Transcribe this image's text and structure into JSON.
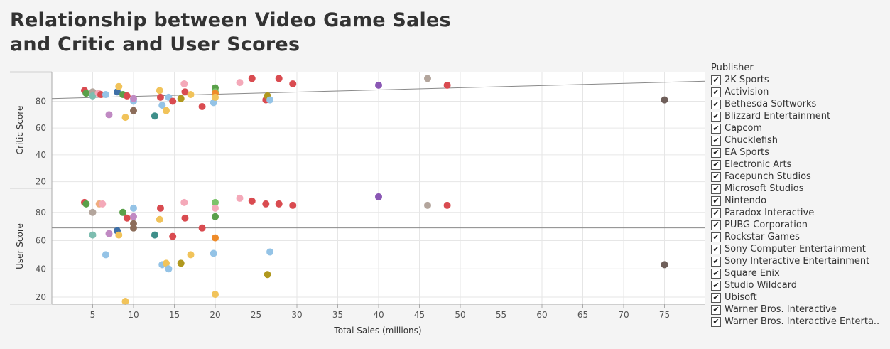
{
  "title_line1": "Relationship between Video Game Sales",
  "title_line2": "and Critic and User Scores",
  "legend": {
    "title": "Publisher",
    "items": [
      "2K Sports",
      "Activision",
      "Bethesda Softworks",
      "Blizzard Entertainment",
      "Capcom",
      "Chucklefish",
      "EA Sports",
      "Electronic Arts",
      "Facepunch Studios",
      "Microsoft Studios",
      "Nintendo",
      "Paradox Interactive",
      "PUBG Corporation",
      "Rockstar Games",
      "Sony Computer Entertainment",
      "Sony Interactive Entertainment",
      "Square Enix",
      "Studio Wildcard",
      "Ubisoft",
      "Warner Bros. Interactive",
      "Warner Bros. Interactive Enterta.."
    ],
    "check_glyph": "✔"
  },
  "colors": {
    "red": "#d94b50",
    "pink": "#f4a9b9",
    "green": "#5aa04a",
    "lightgreen": "#7cc36a",
    "teal": "#3e8f8a",
    "lightteal": "#7dbdb0",
    "blue": "#3e6fa6",
    "lightblue": "#94c3e6",
    "yellow": "#f1c35a",
    "orange": "#ee8b2a",
    "olive": "#b0981e",
    "brown": "#8c6d5a",
    "darkgray": "#6f5f5a",
    "gray": "#b3a59c",
    "purple": "#8a57b4",
    "lilac": "#c08ac3",
    "peach": "#f0ac7e"
  },
  "chart_data": [
    {
      "type": "scatter",
      "xlabel": "Total Sales (millions)",
      "ylabel": "Critic Score",
      "xlim": [
        0,
        80
      ],
      "ylim": [
        15,
        102
      ],
      "x_ticks": [
        "5",
        "10",
        "15",
        "20",
        "25",
        "30",
        "35",
        "40",
        "45",
        "50",
        "55",
        "60",
        "65",
        "70",
        "75"
      ],
      "y_ticks": [
        "20",
        "40",
        "60",
        "80"
      ],
      "grid": true,
      "trend_line": [
        [
          0,
          82
        ],
        [
          80,
          95
        ]
      ],
      "points": [
        {
          "x": 4,
          "y": 88,
          "c": "red"
        },
        {
          "x": 4.2,
          "y": 86,
          "c": "green"
        },
        {
          "x": 5,
          "y": 87,
          "c": "gray"
        },
        {
          "x": 5,
          "y": 84,
          "c": "lightteal"
        },
        {
          "x": 5.7,
          "y": 86,
          "c": "pink"
        },
        {
          "x": 6,
          "y": 85,
          "c": "red"
        },
        {
          "x": 6.6,
          "y": 85,
          "c": "lightblue"
        },
        {
          "x": 7,
          "y": 70,
          "c": "lilac"
        },
        {
          "x": 8,
          "y": 87,
          "c": "blue"
        },
        {
          "x": 8.2,
          "y": 91,
          "c": "yellow"
        },
        {
          "x": 8.7,
          "y": 85,
          "c": "green"
        },
        {
          "x": 9,
          "y": 68,
          "c": "yellow"
        },
        {
          "x": 9.2,
          "y": 84,
          "c": "red"
        },
        {
          "x": 10,
          "y": 80,
          "c": "lightblue"
        },
        {
          "x": 10,
          "y": 82,
          "c": "lilac"
        },
        {
          "x": 10,
          "y": 73,
          "c": "brown"
        },
        {
          "x": 12.6,
          "y": 69,
          "c": "teal"
        },
        {
          "x": 13.2,
          "y": 88,
          "c": "yellow"
        },
        {
          "x": 13.3,
          "y": 83,
          "c": "red"
        },
        {
          "x": 13.5,
          "y": 77,
          "c": "lightblue"
        },
        {
          "x": 14,
          "y": 73,
          "c": "yellow"
        },
        {
          "x": 14.3,
          "y": 83,
          "c": "lightblue"
        },
        {
          "x": 14.8,
          "y": 80,
          "c": "red"
        },
        {
          "x": 15.8,
          "y": 82,
          "c": "olive"
        },
        {
          "x": 16.2,
          "y": 93,
          "c": "pink"
        },
        {
          "x": 16.3,
          "y": 87,
          "c": "red"
        },
        {
          "x": 17,
          "y": 85,
          "c": "yellow"
        },
        {
          "x": 18.4,
          "y": 76,
          "c": "red"
        },
        {
          "x": 19.8,
          "y": 79,
          "c": "lightblue"
        },
        {
          "x": 20,
          "y": 90,
          "c": "green"
        },
        {
          "x": 20,
          "y": 87,
          "c": "lightgreen"
        },
        {
          "x": 20,
          "y": 86,
          "c": "orange"
        },
        {
          "x": 20,
          "y": 83,
          "c": "yellow"
        },
        {
          "x": 23,
          "y": 94,
          "c": "pink"
        },
        {
          "x": 24.5,
          "y": 97,
          "c": "red"
        },
        {
          "x": 26.2,
          "y": 81,
          "c": "red"
        },
        {
          "x": 26.4,
          "y": 84,
          "c": "olive"
        },
        {
          "x": 26.7,
          "y": 81,
          "c": "lightblue"
        },
        {
          "x": 27.8,
          "y": 97,
          "c": "red"
        },
        {
          "x": 29.5,
          "y": 93,
          "c": "red"
        },
        {
          "x": 40,
          "y": 92,
          "c": "purple"
        },
        {
          "x": 46,
          "y": 97,
          "c": "gray"
        },
        {
          "x": 48.4,
          "y": 92,
          "c": "red"
        },
        {
          "x": 75,
          "y": 81,
          "c": "darkgray"
        }
      ]
    },
    {
      "type": "scatter",
      "xlabel": "Total Sales (millions)",
      "ylabel": "User Score",
      "xlim": [
        0,
        80
      ],
      "ylim": [
        15,
        97
      ],
      "x_ticks": [
        "5",
        "10",
        "15",
        "20",
        "25",
        "30",
        "35",
        "40",
        "45",
        "50",
        "55",
        "60",
        "65",
        "70",
        "75"
      ],
      "y_ticks": [
        "20",
        "40",
        "60",
        "80"
      ],
      "grid": true,
      "trend_line": [
        [
          0,
          69
        ],
        [
          80,
          69
        ]
      ],
      "points": [
        {
          "x": 4,
          "y": 87,
          "c": "red"
        },
        {
          "x": 4.2,
          "y": 86,
          "c": "green"
        },
        {
          "x": 5,
          "y": 80,
          "c": "gray"
        },
        {
          "x": 5,
          "y": 64,
          "c": "lightteal"
        },
        {
          "x": 5.8,
          "y": 86,
          "c": "peach"
        },
        {
          "x": 6.2,
          "y": 86,
          "c": "pink"
        },
        {
          "x": 6.6,
          "y": 50,
          "c": "lightblue"
        },
        {
          "x": 7,
          "y": 65,
          "c": "lilac"
        },
        {
          "x": 8,
          "y": 67,
          "c": "blue"
        },
        {
          "x": 8.2,
          "y": 64,
          "c": "yellow"
        },
        {
          "x": 8.7,
          "y": 80,
          "c": "green"
        },
        {
          "x": 9,
          "y": 17,
          "c": "yellow"
        },
        {
          "x": 9.2,
          "y": 76,
          "c": "red"
        },
        {
          "x": 10,
          "y": 83,
          "c": "lightblue"
        },
        {
          "x": 10,
          "y": 77,
          "c": "lilac"
        },
        {
          "x": 10,
          "y": 72,
          "c": "brown"
        },
        {
          "x": 10,
          "y": 69,
          "c": "brown"
        },
        {
          "x": 12.6,
          "y": 64,
          "c": "teal"
        },
        {
          "x": 13.2,
          "y": 75,
          "c": "yellow"
        },
        {
          "x": 13.3,
          "y": 83,
          "c": "red"
        },
        {
          "x": 13.5,
          "y": 43,
          "c": "lightblue"
        },
        {
          "x": 14,
          "y": 44,
          "c": "yellow"
        },
        {
          "x": 14.3,
          "y": 40,
          "c": "lightblue"
        },
        {
          "x": 14.8,
          "y": 63,
          "c": "red"
        },
        {
          "x": 15.8,
          "y": 44,
          "c": "olive"
        },
        {
          "x": 16.2,
          "y": 87,
          "c": "pink"
        },
        {
          "x": 16.3,
          "y": 76,
          "c": "red"
        },
        {
          "x": 17,
          "y": 50,
          "c": "yellow"
        },
        {
          "x": 18.4,
          "y": 69,
          "c": "red"
        },
        {
          "x": 19.8,
          "y": 51,
          "c": "lightblue"
        },
        {
          "x": 20,
          "y": 87,
          "c": "lightgreen"
        },
        {
          "x": 20,
          "y": 83,
          "c": "pink"
        },
        {
          "x": 20,
          "y": 77,
          "c": "green"
        },
        {
          "x": 20,
          "y": 62,
          "c": "orange"
        },
        {
          "x": 20,
          "y": 22,
          "c": "yellow"
        },
        {
          "x": 23,
          "y": 90,
          "c": "pink"
        },
        {
          "x": 24.5,
          "y": 88,
          "c": "red"
        },
        {
          "x": 26.2,
          "y": 86,
          "c": "red"
        },
        {
          "x": 26.4,
          "y": 36,
          "c": "olive"
        },
        {
          "x": 26.7,
          "y": 52,
          "c": "lightblue"
        },
        {
          "x": 27.8,
          "y": 86,
          "c": "red"
        },
        {
          "x": 29.5,
          "y": 85,
          "c": "red"
        },
        {
          "x": 40,
          "y": 91,
          "c": "purple"
        },
        {
          "x": 46,
          "y": 85,
          "c": "gray"
        },
        {
          "x": 48.4,
          "y": 85,
          "c": "red"
        },
        {
          "x": 75,
          "y": 43,
          "c": "darkgray"
        }
      ]
    }
  ]
}
